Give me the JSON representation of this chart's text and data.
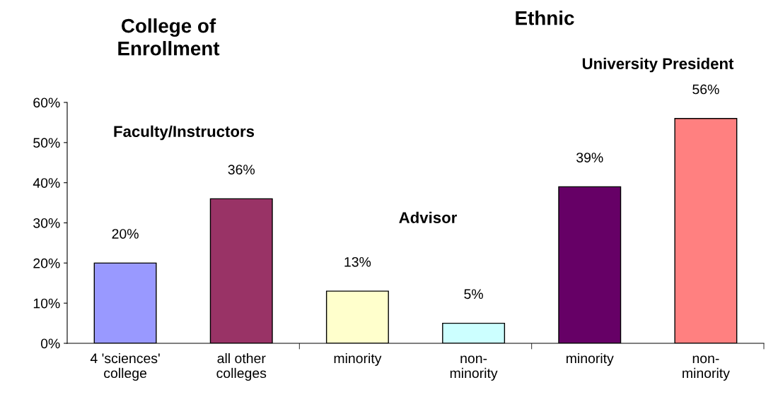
{
  "chart_data": {
    "type": "bar",
    "categories": [
      "4 'sciences'\ncollege",
      "all other\ncolleges",
      "minority",
      "non-\nminority",
      "minority",
      "non-\nminority"
    ],
    "values": [
      20,
      36,
      13,
      5,
      39,
      56
    ],
    "colors": [
      "#9999ff",
      "#993366",
      "#ffffcc",
      "#ccffff",
      "#660066",
      "#ff8080"
    ],
    "value_labels": [
      "20%",
      "36%",
      "13%",
      "5%",
      "39%",
      "56%"
    ],
    "ylim": [
      0,
      60
    ],
    "yticks": [
      {
        "value": 0,
        "label": "0%"
      },
      {
        "value": 10,
        "label": "10%"
      },
      {
        "value": 20,
        "label": "20%"
      },
      {
        "value": 30,
        "label": "30%"
      },
      {
        "value": 40,
        "label": "40%"
      },
      {
        "value": 50,
        "label": "50%"
      },
      {
        "value": 60,
        "label": "60%"
      }
    ],
    "annotations": [
      "College of\nEnrollment",
      "Ethnic",
      "Faculty/Instructors",
      "Advisor",
      "University President"
    ],
    "grid": false,
    "legend": false
  }
}
